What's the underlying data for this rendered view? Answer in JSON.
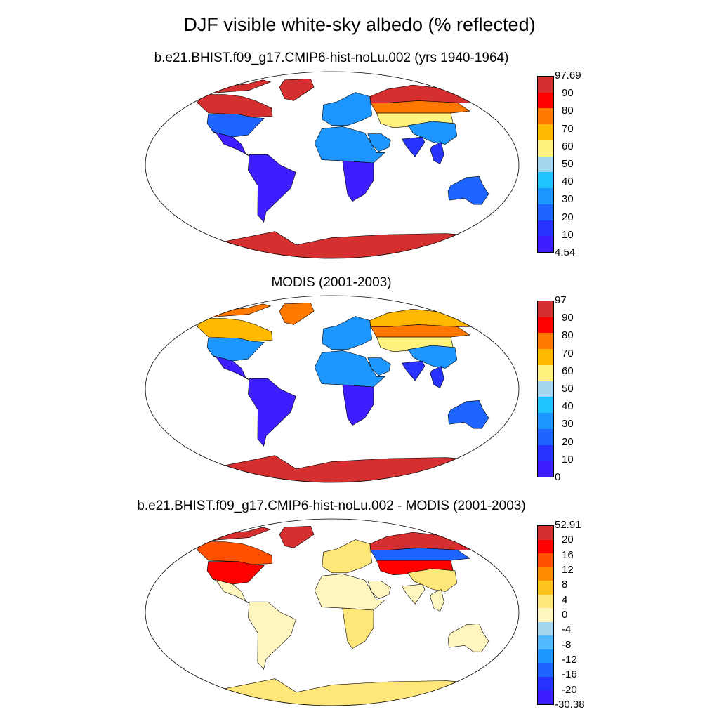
{
  "title": "DJF visible white-sky albedo (% reflected)",
  "panels": [
    {
      "id": "model",
      "title": "b.e21.BHIST.f09_g17.CMIP6-hist-noLu.002 (yrs 1940-1964)",
      "colorbar": {
        "labels": [
          "97.69",
          "90",
          "80",
          "70",
          "60",
          "50",
          "40",
          "30",
          "20",
          "10",
          "4.54"
        ],
        "colors": [
          "#d62f2f",
          "#ff0000",
          "#ff7800",
          "#ffb900",
          "#fff27f",
          "#a5d7f0",
          "#1ec3ff",
          "#1e96ff",
          "#1e64ff",
          "#2832ff",
          "#3c1eff"
        ]
      },
      "regions": {
        "arctic": "#d62f2f",
        "canada": "#d62f2f",
        "greenland": "#d62f2f",
        "usa": "#1e64ff",
        "mexico": "#3c1eff",
        "south_america": "#3c1eff",
        "europe": "#1e96ff",
        "russia_north": "#d62f2f",
        "russia_mid": "#ff7800",
        "central_asia": "#fff27f",
        "china": "#1e96ff",
        "india": "#2832ff",
        "africa_north": "#1e96ff",
        "africa_south": "#3c1eff",
        "arabia": "#1e96ff",
        "se_asia": "#2832ff",
        "australia": "#1e64ff",
        "antarctica": "#d62f2f"
      }
    },
    {
      "id": "obs",
      "title": "MODIS (2001-2003)",
      "colorbar": {
        "labels": [
          "97",
          "90",
          "80",
          "70",
          "60",
          "50",
          "40",
          "30",
          "20",
          "10",
          "0"
        ],
        "colors": [
          "#d62f2f",
          "#ff0000",
          "#ff7800",
          "#ffb900",
          "#fff27f",
          "#a5d7f0",
          "#1ec3ff",
          "#1e96ff",
          "#1e64ff",
          "#2832ff",
          "#3c1eff"
        ]
      },
      "regions": {
        "arctic": "#ff7800",
        "canada": "#ffb900",
        "greenland": "#ff7800",
        "usa": "#1e96ff",
        "mexico": "#3c1eff",
        "south_america": "#3c1eff",
        "europe": "#1e96ff",
        "russia_north": "#ffb900",
        "russia_mid": "#ff7800",
        "central_asia": "#fff27f",
        "china": "#1e96ff",
        "india": "#2832ff",
        "africa_north": "#1e96ff",
        "africa_south": "#3c1eff",
        "arabia": "#1e96ff",
        "se_asia": "#2832ff",
        "australia": "#1e64ff",
        "antarctica": "#d62f2f"
      }
    },
    {
      "id": "diff",
      "title": "b.e21.BHIST.f09_g17.CMIP6-hist-noLu.002 - MODIS (2001-2003)",
      "colorbar": {
        "labels": [
          "52.91",
          "20",
          "16",
          "12",
          "8",
          "4",
          "0",
          "-4",
          "-8",
          "-12",
          "-16",
          "-20",
          "-30.38"
        ],
        "colors": [
          "#d62f2f",
          "#ff0000",
          "#ff5000",
          "#ff8c00",
          "#ffc31e",
          "#ffe678",
          "#fff5be",
          "#a5d7f0",
          "#50b9ff",
          "#1e96ff",
          "#1e64ff",
          "#2832ff",
          "#3c1eff"
        ]
      },
      "regions": {
        "arctic": "#d62f2f",
        "canada": "#ff5000",
        "greenland": "#d62f2f",
        "usa": "#ff0000",
        "mexico": "#fff5be",
        "south_america": "#fff5be",
        "europe": "#ffe678",
        "russia_north": "#d62f2f",
        "russia_mid": "#1e64ff",
        "central_asia": "#ff0000",
        "china": "#ffe678",
        "india": "#fff5be",
        "africa_north": "#fff5be",
        "africa_south": "#ffe678",
        "arabia": "#fff5be",
        "se_asia": "#fff5be",
        "australia": "#fff5be",
        "antarctica": "#ffe678"
      }
    }
  ]
}
